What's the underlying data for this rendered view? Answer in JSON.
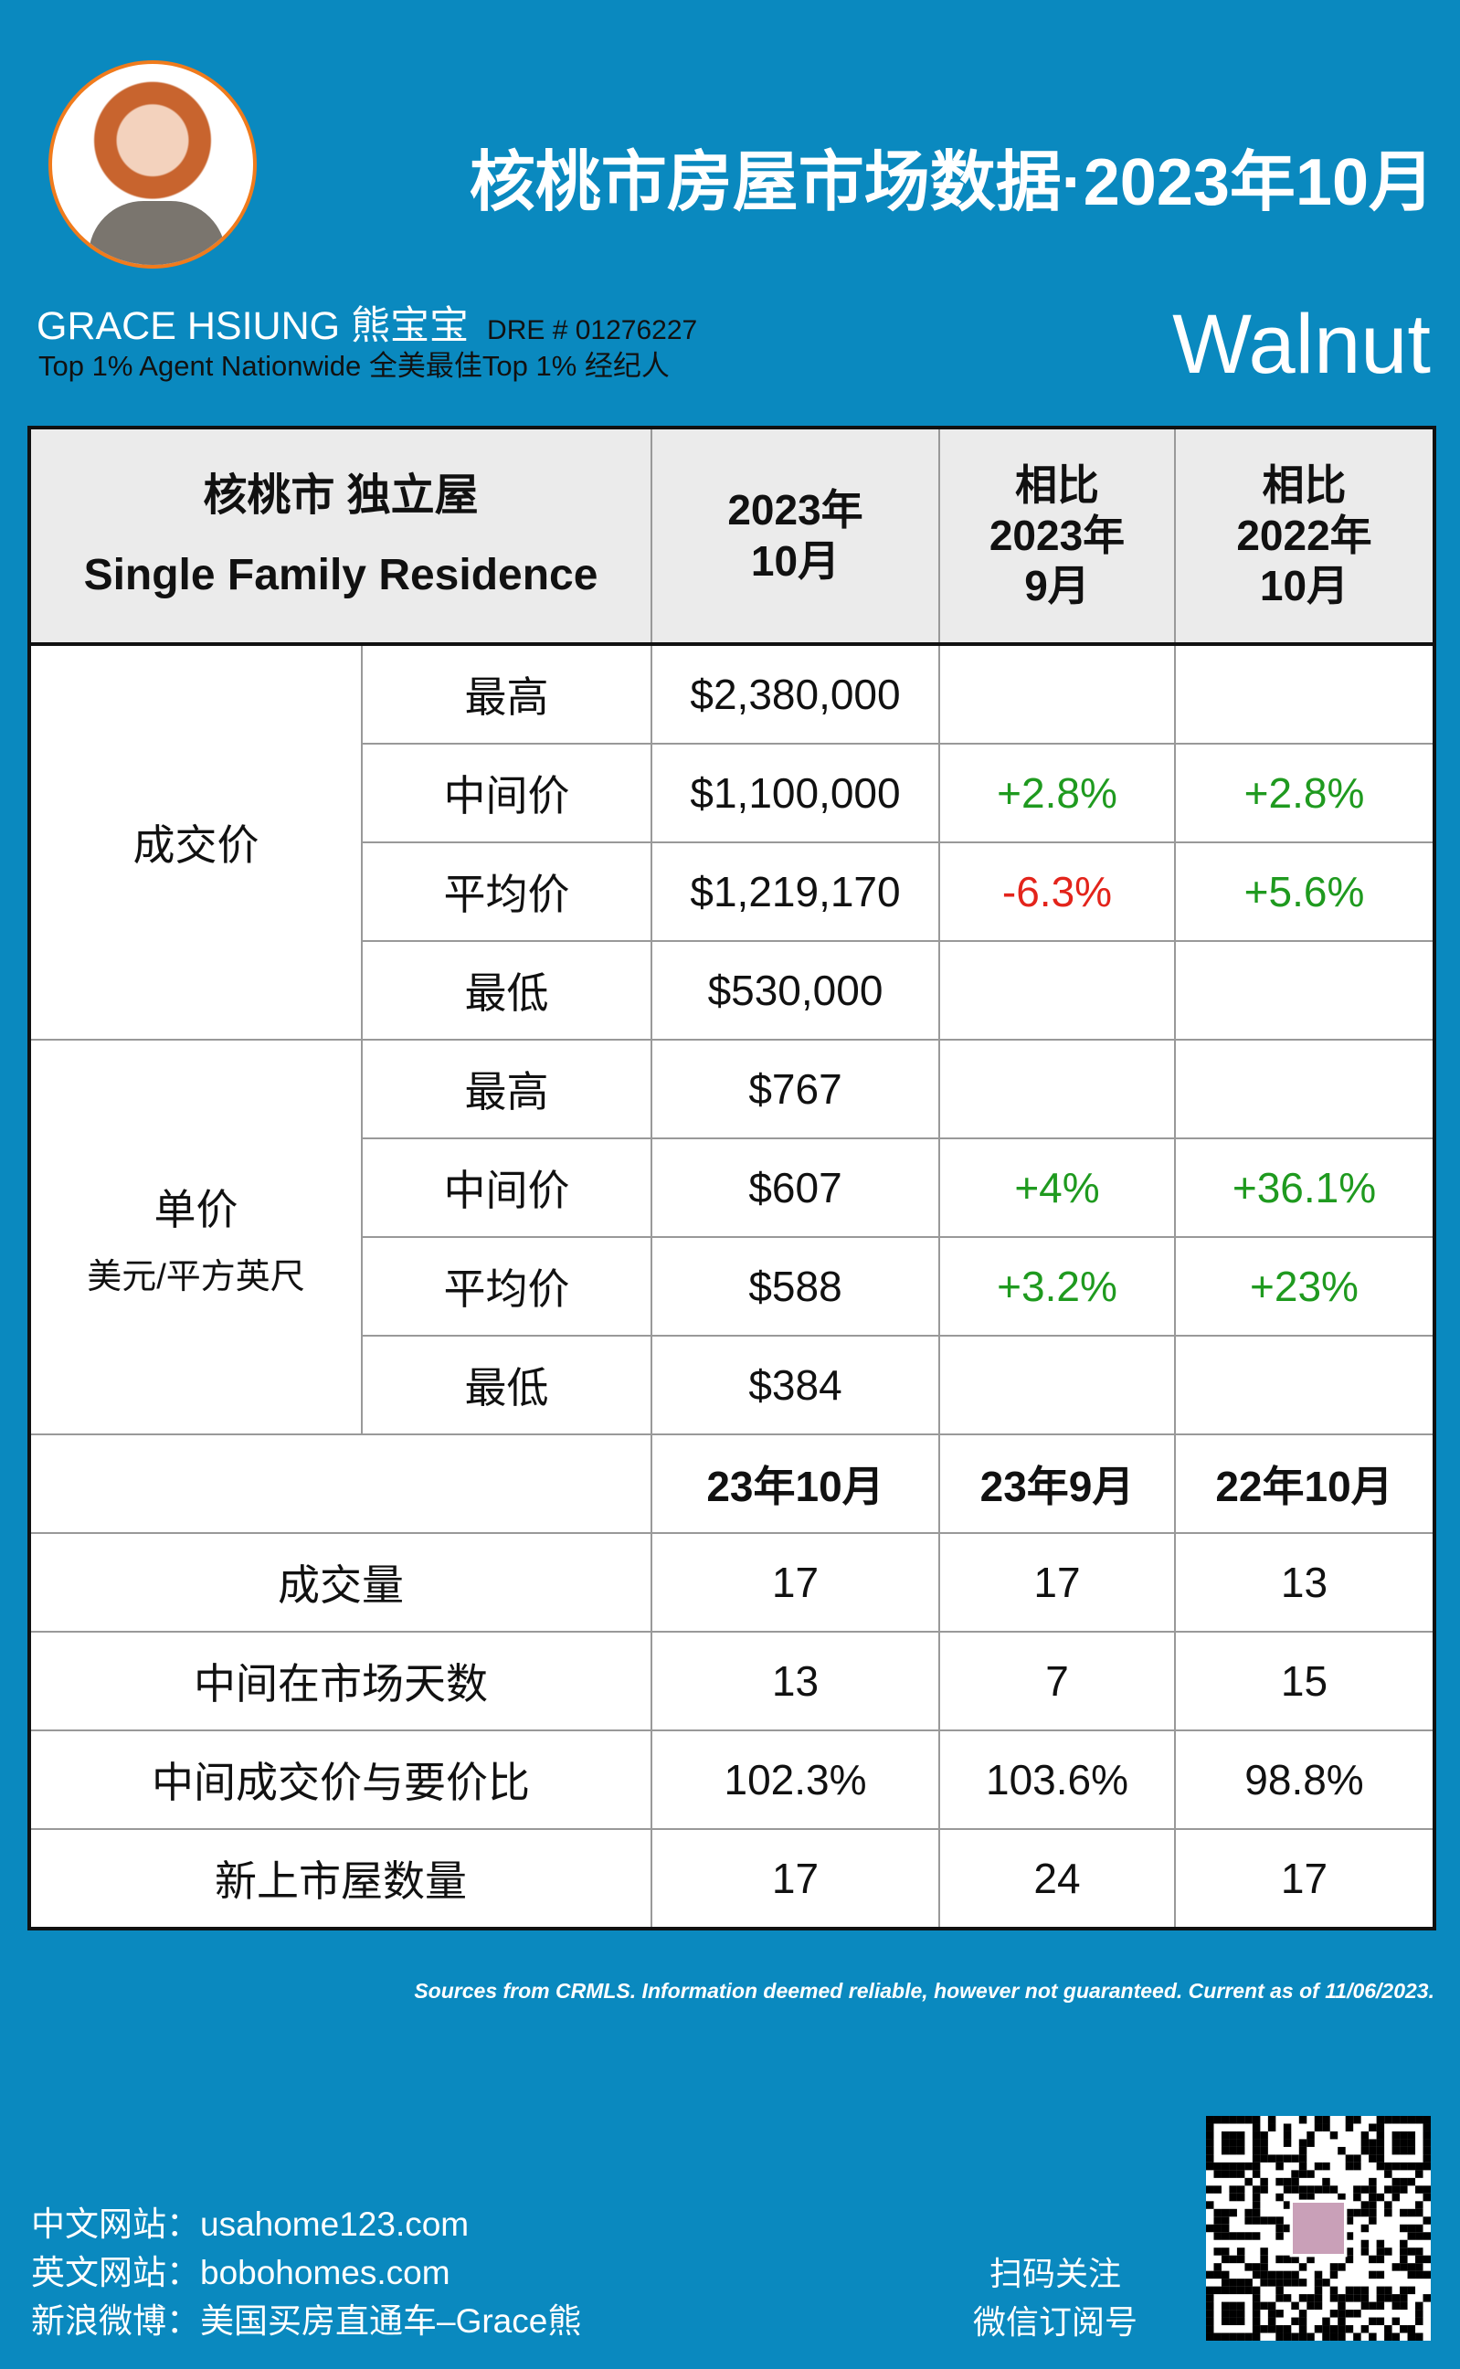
{
  "header": {
    "title": "核桃市房屋市场数据·2023年10月",
    "agent_name": "GRACE HSIUNG 熊宝宝",
    "dre": "DRE # 01276227",
    "tagline": "Top 1% Agent Nationwide  全美最佳Top 1% 经纪人",
    "city": "Walnut"
  },
  "table": {
    "head": {
      "type_zh": "核桃市  独立屋",
      "type_en": "Single Family Residence",
      "col1": [
        "2023年",
        "10月"
      ],
      "col2": [
        "相比",
        "2023年",
        "9月"
      ],
      "col3": [
        "相比",
        "2022年",
        "10月"
      ]
    },
    "groups": [
      {
        "label": "成交价",
        "sub": "",
        "rows": [
          {
            "name": "最高",
            "value": "$2,380,000",
            "mom": "",
            "yoy": ""
          },
          {
            "name": "中间价",
            "value": "$1,100,000",
            "mom": "+2.8%",
            "yoy": "+2.8%"
          },
          {
            "name": "平均价",
            "value": "$1,219,170",
            "mom": "-6.3%",
            "yoy": "+5.6%"
          },
          {
            "name": "最低",
            "value": "$530,000",
            "mom": "",
            "yoy": ""
          }
        ]
      },
      {
        "label": "单价",
        "sub": "美元/平方英尺",
        "rows": [
          {
            "name": "最高",
            "value": "$767",
            "mom": "",
            "yoy": ""
          },
          {
            "name": "中间价",
            "value": "$607",
            "mom": "+4%",
            "yoy": "+36.1%"
          },
          {
            "name": "平均价",
            "value": "$588",
            "mom": "+3.2%",
            "yoy": "+23%"
          },
          {
            "name": "最低",
            "value": "$384",
            "mom": "",
            "yoy": ""
          }
        ]
      }
    ],
    "stats_head": [
      "23年10月",
      "23年9月",
      "22年10月"
    ],
    "stats": [
      {
        "name": "成交量",
        "values": [
          "17",
          "17",
          "13"
        ]
      },
      {
        "name": "中间在市场天数",
        "values": [
          "13",
          "7",
          "15"
        ]
      },
      {
        "name": "中间成交价与要价比",
        "values": [
          "102.3%",
          "103.6%",
          "98.8%"
        ]
      },
      {
        "name": "新上市屋数量",
        "values": [
          "17",
          "24",
          "17"
        ]
      }
    ]
  },
  "footer": {
    "sources": "Sources from CRMLS. Information deemed reliable, however not guaranteed. Current as of 11/06/2023.",
    "links": [
      "中文网站：usahome123.com",
      "英文网站：bobohomes.com",
      "新浪微博：美国买房直通车–Grace熊"
    ],
    "scan": [
      "扫码关注",
      "微信订阅号"
    ]
  },
  "colors": {
    "background": "#0a89bf",
    "positive": "#1f9a1f",
    "negative": "#e3241b",
    "avatar_border": "#f07b1c"
  }
}
